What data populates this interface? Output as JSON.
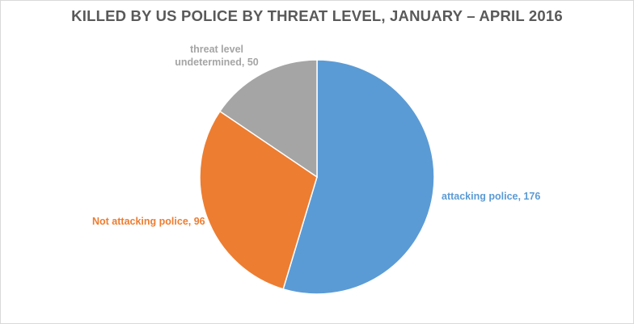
{
  "chart_data": {
    "type": "pie",
    "title": "KILLED BY US POLICE BY THREAT LEVEL, JANUARY – APRIL 2016",
    "slices": [
      {
        "label": "attacking police, 176",
        "name": "attacking police",
        "value": 176,
        "color": "#5b9bd5"
      },
      {
        "label": "Not attacking police, 96",
        "name": "Not attacking police",
        "value": 96,
        "color": "#ed7d31"
      },
      {
        "label_lines": [
          "threat level",
          "undetermined, 50"
        ],
        "name": "threat level undetermined",
        "value": 50,
        "color": "#a5a5a5"
      }
    ],
    "start_angle": "12 o'clock",
    "direction": "clockwise",
    "legend": "none"
  }
}
